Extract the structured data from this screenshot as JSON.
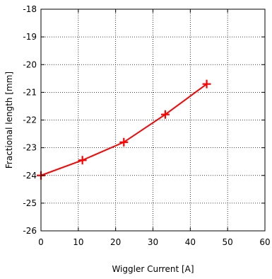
{
  "chart_data": {
    "type": "line",
    "title": "",
    "xlabel": "Wiggler Current [A]",
    "ylabel": "Fractional length [mm]",
    "xlim": [
      0,
      60
    ],
    "ylim": [
      -26,
      -18
    ],
    "xticks": [
      0,
      10,
      20,
      30,
      40,
      50,
      60
    ],
    "yticks": [
      -26,
      -25,
      -24,
      -23,
      -22,
      -21,
      -20,
      -19,
      -18
    ],
    "grid": true,
    "grid_style": "dotted",
    "series": [
      {
        "color": "#ff0000",
        "marker": "plus",
        "x": [
          0,
          11.1,
          22.2,
          33.3,
          44.4
        ],
        "y": [
          -24.0,
          -23.45,
          -22.8,
          -21.8,
          -20.7
        ]
      }
    ]
  }
}
